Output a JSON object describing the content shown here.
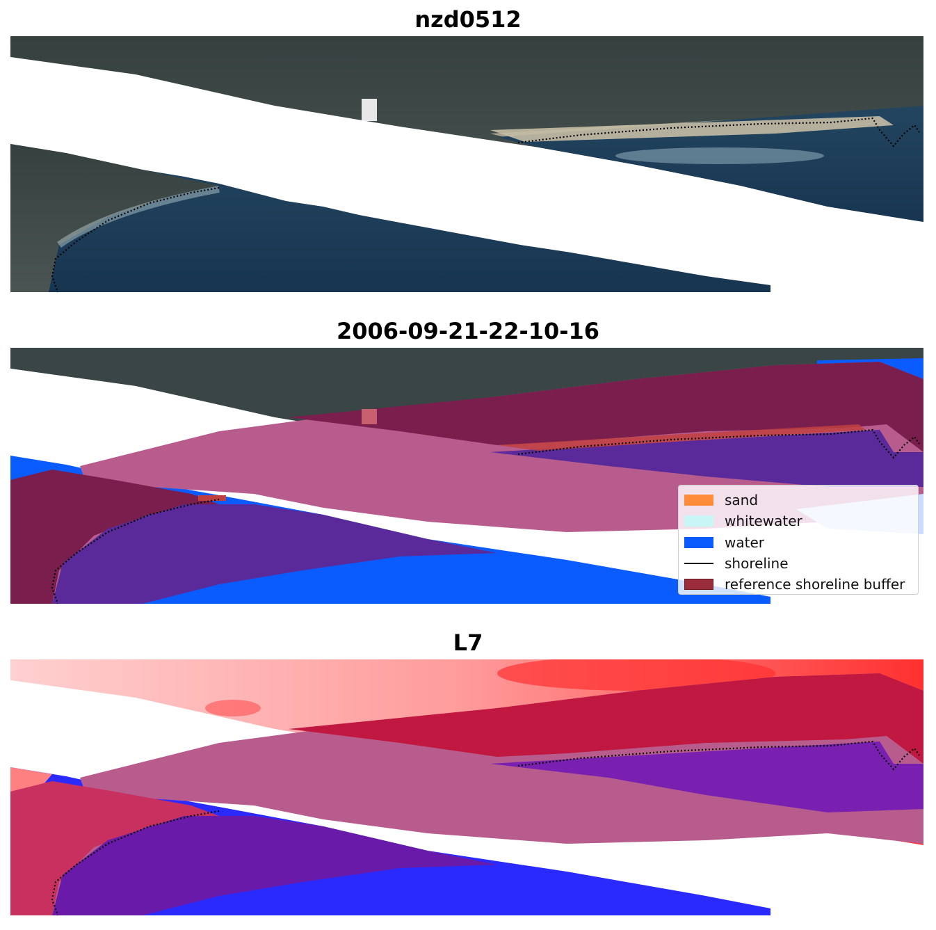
{
  "panels": [
    {
      "title": "nzd0512"
    },
    {
      "title": "2006-09-21-22-10-16"
    },
    {
      "title": "L7"
    }
  ],
  "legend": {
    "items": [
      {
        "label": "sand",
        "color": "#ff8c3a",
        "kind": "patch"
      },
      {
        "label": "whitewater",
        "color": "#c8f5f5",
        "kind": "patch"
      },
      {
        "label": "water",
        "color": "#0a5cff",
        "kind": "patch"
      },
      {
        "label": "shoreline",
        "color": "#000000",
        "kind": "line"
      },
      {
        "label": "reference shoreline buffer",
        "color": "#9b2d3a",
        "kind": "patch"
      }
    ]
  },
  "colors": {
    "land": "#3d4a4a",
    "land_dark": "#2e3a3a",
    "sea": "#1c3d55",
    "sand_strip": "#c8c0a8",
    "surf": "#a8c4d0",
    "buffer_overlay": "#b85c8e",
    "buffer_dark": "#7a1e4e",
    "water_class": "#0a5cff",
    "water_purple": "#5a2a9a",
    "mndwi_red": "#ff3030",
    "mndwi_pink": "#ffc0c0",
    "mndwi_blue": "#2020ff"
  }
}
